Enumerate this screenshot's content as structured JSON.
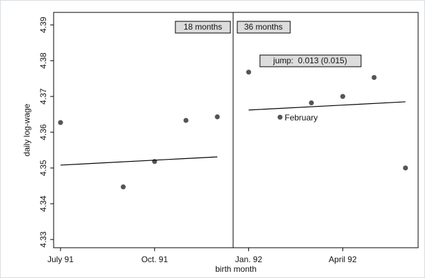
{
  "chart_data": {
    "type": "scatter",
    "x_label": "birth month",
    "y_label": "daily log-wage",
    "categories": [
      "July 91",
      null,
      null,
      "Oct. 91",
      null,
      null,
      "Jan. 92",
      null,
      null,
      "April 92",
      null,
      null
    ],
    "values": [
      4.3627,
      null,
      4.3447,
      4.3518,
      4.3633,
      4.3643,
      4.3768,
      4.3642,
      4.3682,
      4.37,
      4.3753,
      4.35
    ],
    "color": "#555555",
    "ylim": [
      4.3277,
      4.3935
    ],
    "yticks": [
      4.33,
      4.34,
      4.35,
      4.36,
      4.37,
      4.38,
      4.39
    ],
    "fit_lines": [
      {
        "start": 4.3508,
        "end": 4.3531
      },
      {
        "start": 4.3662,
        "end": 4.3685
      }
    ],
    "annotations": [
      "18 months",
      "36 months",
      "jump:  0.013 (0.015)"
    ],
    "point_note": "February"
  }
}
